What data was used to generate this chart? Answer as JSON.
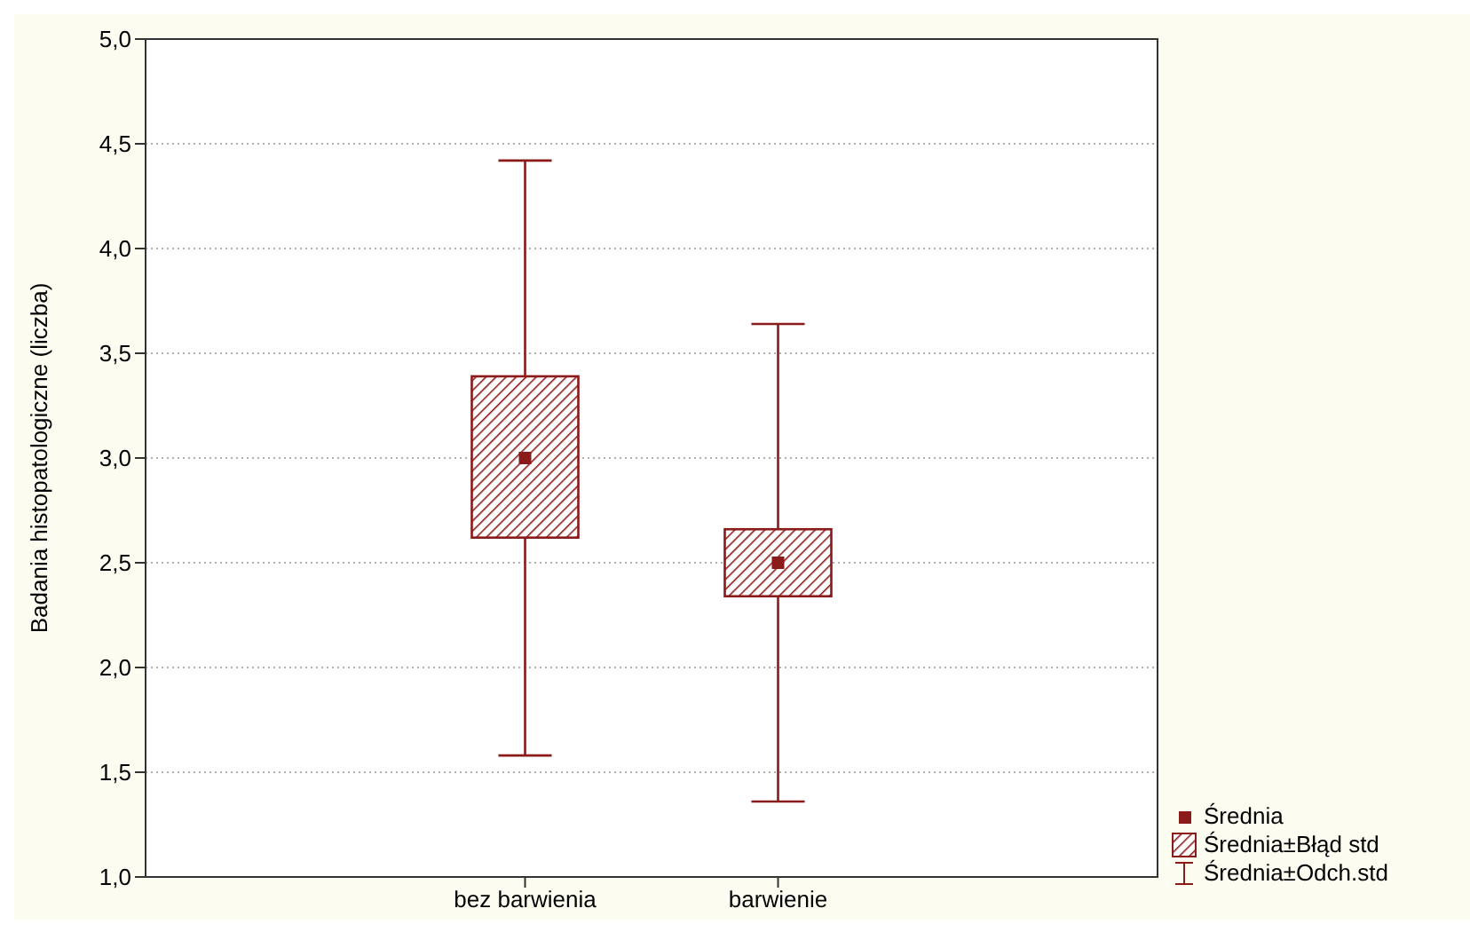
{
  "chart_data": {
    "type": "box",
    "ylabel": "Badania histopatologiczne (liczba)",
    "categories": [
      "bez barwienia",
      "barwienie"
    ],
    "boxes": [
      {
        "low": 1.58,
        "q1": 2.62,
        "median": 3.0,
        "q3": 3.39,
        "high": 4.42
      },
      {
        "low": 1.36,
        "q1": 2.34,
        "median": 2.5,
        "q3": 2.66,
        "high": 3.64
      }
    ],
    "color": "#8b1a1a",
    "ylim": [
      1,
      5
    ],
    "yticks": [
      {
        "value": 1,
        "label": "1,0"
      },
      {
        "value": 1.5,
        "label": "1,5"
      },
      {
        "value": 2,
        "label": "2,0"
      },
      {
        "value": 2.5,
        "label": "2,5"
      },
      {
        "value": 3,
        "label": "3,0"
      },
      {
        "value": 3.5,
        "label": "3,5"
      },
      {
        "value": 4,
        "label": "4,0"
      },
      {
        "value": 4.5,
        "label": "4,5"
      },
      {
        "value": 5,
        "label": "5,0"
      }
    ],
    "grid": "y",
    "marker": "square",
    "annotations": [
      "Średnia",
      "Średnia±Błąd std",
      "Średnia±Odch.std"
    ]
  }
}
